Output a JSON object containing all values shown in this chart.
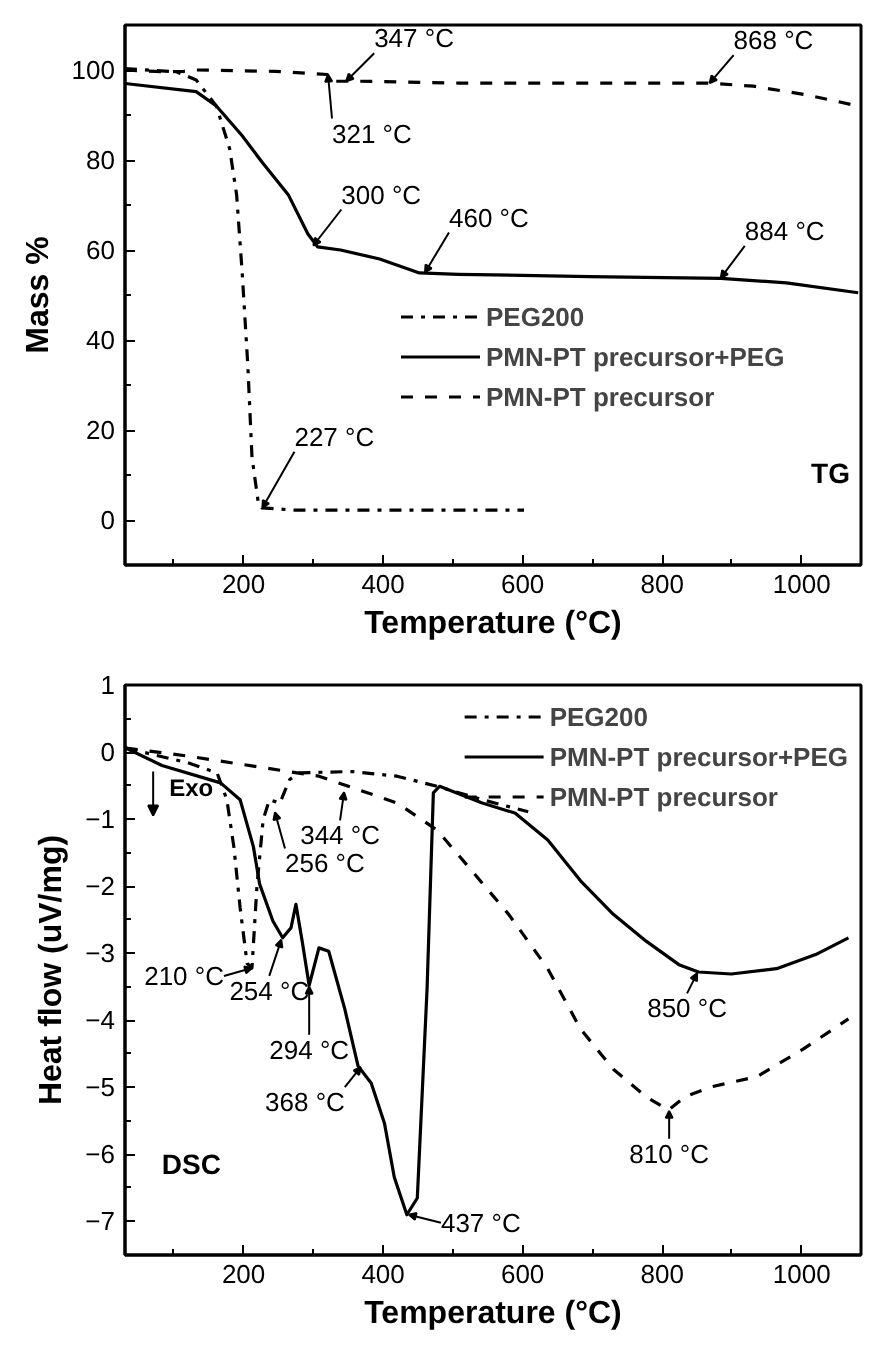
{
  "chart_data": [
    {
      "type": "line",
      "xlabel": "Temperature (°C)",
      "ylabel": "Mass %",
      "xlim": [
        30,
        1085
      ],
      "ylim": [
        -10,
        110
      ],
      "xticks": [
        200,
        400,
        600,
        800,
        1000
      ],
      "yticks": [
        0,
        20,
        40,
        60,
        80,
        100
      ],
      "legend": "right",
      "series": [
        {
          "name": "PEG200",
          "color": "#000000",
          "line_style": "dashdot",
          "x": [
            30,
            104,
            132,
            161,
            180,
            190,
            198,
            206,
            212,
            221,
            226,
            273,
            414,
            602
          ],
          "values": [
            100.3,
            99.6,
            97.8,
            92,
            82.5,
            72.3,
            54.9,
            34.5,
            14,
            3.9,
            2.7,
            2.2,
            2.2,
            2.2
          ]
        },
        {
          "name": "PMN-PT precursor+PEG",
          "color": "#000000",
          "line_style": "solid",
          "x": [
            30,
            132,
            161,
            198,
            226,
            264,
            292,
            306,
            339,
            395,
            452,
            508,
            696,
            884,
            978,
            1081
          ],
          "values": [
            97,
            95.2,
            92,
            85.4,
            79.6,
            72.3,
            63.6,
            60.7,
            60,
            58,
            54.9,
            54.6,
            54.1,
            53.7,
            52.7,
            50.5
          ]
        },
        {
          "name": "PMN-PT precursor",
          "color": "#000000",
          "line_style": "dashed",
          "x": [
            30,
            85,
            114,
            132,
            245,
            320,
            324,
            367,
            508,
            696,
            865,
            931,
            1006,
            1081
          ],
          "values": [
            100,
            99.6,
            99.7,
            100,
            99.7,
            99,
            97.5,
            97.5,
            97.1,
            97.1,
            97.1,
            96.4,
            94.5,
            92
          ]
        }
      ],
      "annotations": [
        {
          "text": "347 °C",
          "x": 347,
          "y": 97.5
        },
        {
          "text": "321 °C",
          "x": 321,
          "y": 99
        },
        {
          "text": "868 °C",
          "x": 868,
          "y": 97.1
        },
        {
          "text": "300 °C",
          "x": 300,
          "y": 61
        },
        {
          "text": "460 °C",
          "x": 460,
          "y": 55
        },
        {
          "text": "884 °C",
          "x": 884,
          "y": 53.8
        },
        {
          "text": "227 °C",
          "x": 227,
          "y": 2.7
        },
        "TG"
      ]
    },
    {
      "type": "line",
      "xlabel": "Temperature (°C)",
      "ylabel": "Heat flow (uV/mg)",
      "xlim": [
        30,
        1085
      ],
      "ylim": [
        -7.5,
        1
      ],
      "xticks": [
        200,
        400,
        600,
        800,
        1000
      ],
      "yticks": [
        -7,
        -6,
        -5,
        -4,
        -3,
        -2,
        -1,
        0,
        1
      ],
      "legend": "top right",
      "series": [
        {
          "name": "PEG200",
          "color": "#000000",
          "line_style": "dashdot",
          "x": [
            31,
            120,
            162,
            176,
            186,
            195,
            205,
            212,
            219,
            228,
            237,
            252,
            266,
            280,
            355,
            420,
            477,
            542,
            608
          ],
          "values": [
            0.06,
            -0.16,
            -0.31,
            -0.71,
            -1.41,
            -2.32,
            -3.15,
            -3.22,
            -2.02,
            -1.01,
            -0.71,
            -0.76,
            -0.41,
            -0.31,
            -0.29,
            -0.36,
            -0.51,
            -0.71,
            -0.89
          ]
        },
        {
          "name": "PMN-PT precursor+PEG",
          "color": "#000000",
          "line_style": "solid",
          "x": [
            31,
            83,
            167,
            195,
            214,
            223,
            242,
            256,
            268,
            275,
            284,
            294,
            308,
            322,
            345,
            364,
            383,
            402,
            416,
            434,
            449,
            463,
            472,
            481,
            542,
            589,
            636,
            683,
            730,
            777,
            824,
            852,
            899,
            964,
            1020,
            1067
          ],
          "values": [
            0.06,
            -0.2,
            -0.46,
            -0.71,
            -1.41,
            -1.97,
            -2.52,
            -2.77,
            -2.62,
            -2.27,
            -2.82,
            -3.48,
            -2.92,
            -2.97,
            -3.83,
            -4.68,
            -4.94,
            -5.54,
            -6.34,
            -6.9,
            -6.65,
            -3.53,
            -0.61,
            -0.51,
            -0.76,
            -0.91,
            -1.31,
            -1.92,
            -2.42,
            -2.82,
            -3.17,
            -3.28,
            -3.31,
            -3.23,
            -3.02,
            -2.77
          ]
        },
        {
          "name": "PMN-PT precursor",
          "color": "#000000",
          "line_style": "dashed",
          "x": [
            31,
            120,
            214,
            308,
            364,
            420,
            477,
            523,
            580,
            636,
            683,
            730,
            777,
            809,
            833,
            871,
            936,
            1002,
            1067
          ],
          "values": [
            0.06,
            -0.06,
            -0.21,
            -0.36,
            -0.56,
            -0.76,
            -1.16,
            -1.72,
            -2.42,
            -3.23,
            -4.13,
            -4.73,
            -5.14,
            -5.34,
            -5.14,
            -4.99,
            -4.84,
            -4.43,
            -3.98
          ]
        }
      ],
      "annotations": [
        {
          "text": "256 °C",
          "x": 245,
          "y": -0.9
        },
        {
          "text": "344 °C",
          "x": 344,
          "y": -0.6
        },
        {
          "text": "210 °C",
          "x": 212,
          "y": -3.22
        },
        {
          "text": "254 °C",
          "x": 254,
          "y": -2.8
        },
        {
          "text": "294 °C",
          "x": 294,
          "y": -3.5
        },
        {
          "text": "368 °C",
          "x": 368,
          "y": -4.7
        },
        {
          "text": "437 °C",
          "x": 437,
          "y": -6.9
        },
        {
          "text": "850 °C",
          "x": 850,
          "y": -3.3
        },
        {
          "text": "810 °C",
          "x": 810,
          "y": -5.35
        },
        "Exo",
        "DSC"
      ]
    }
  ]
}
